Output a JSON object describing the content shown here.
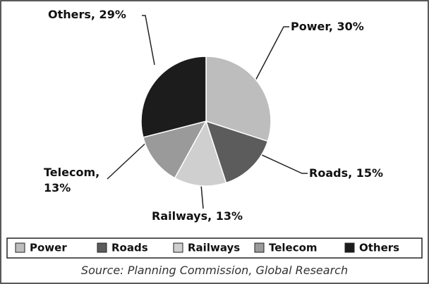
{
  "chart_data": {
    "type": "pie",
    "categories": [
      "Power",
      "Roads",
      "Railways",
      "Telecom",
      "Others"
    ],
    "values": [
      30,
      15,
      13,
      13,
      29
    ],
    "value_labels": [
      "Power, 30%",
      "Roads, 15%",
      "Railways, 13%",
      "Telecom, 13%",
      "Others, 29%"
    ],
    "colors": [
      "#bdbdbd",
      "#5c5c5c",
      "#cfcfcf",
      "#9a9a9a",
      "#1c1c1c"
    ],
    "legend": "bottom",
    "source": "Source: Planning Commission, Global Research"
  }
}
